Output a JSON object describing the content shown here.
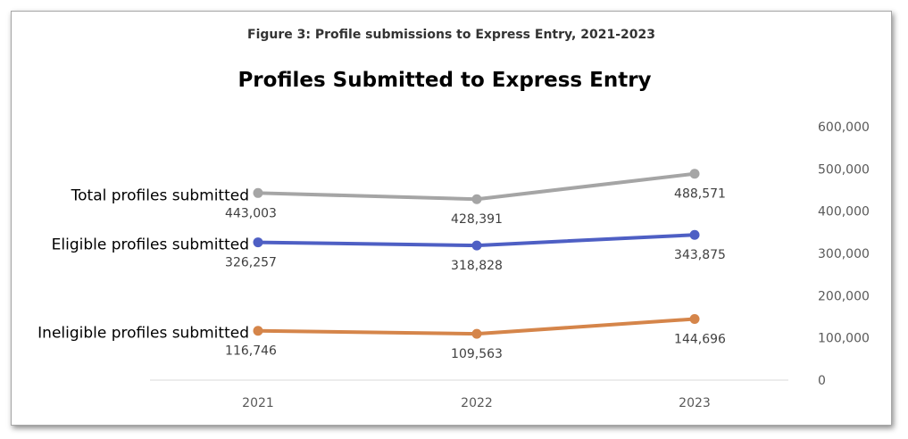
{
  "figure_caption": "Figure 3: Profile submissions to Express Entry, 2021-2023",
  "chart_data": {
    "type": "line",
    "title": "Profiles Submitted to Express Entry",
    "categories": [
      "2021",
      "2022",
      "2023"
    ],
    "y_axis_position": "right",
    "ylim": [
      0,
      600000
    ],
    "y_ticks": [
      "0",
      "100,000",
      "200,000",
      "300,000",
      "400,000",
      "500,000",
      "600,000"
    ],
    "grid": false,
    "legend": "inline labels at left of each series",
    "series": [
      {
        "name": "Total profiles submitted",
        "values": [
          443003,
          428391,
          488571
        ],
        "labels": [
          "443,003",
          "428,391",
          "488,571"
        ],
        "color": "#a5a5a5"
      },
      {
        "name": "Eligible profiles submitted",
        "values": [
          326257,
          318828,
          343875
        ],
        "labels": [
          "326,257",
          "318,828",
          "343,875"
        ],
        "color": "#4e5fc4"
      },
      {
        "name": "Ineligible profiles submitted",
        "values": [
          116746,
          109563,
          144696
        ],
        "labels": [
          "116,746",
          "109,563",
          "144,696"
        ],
        "color": "#d5854a"
      }
    ]
  }
}
